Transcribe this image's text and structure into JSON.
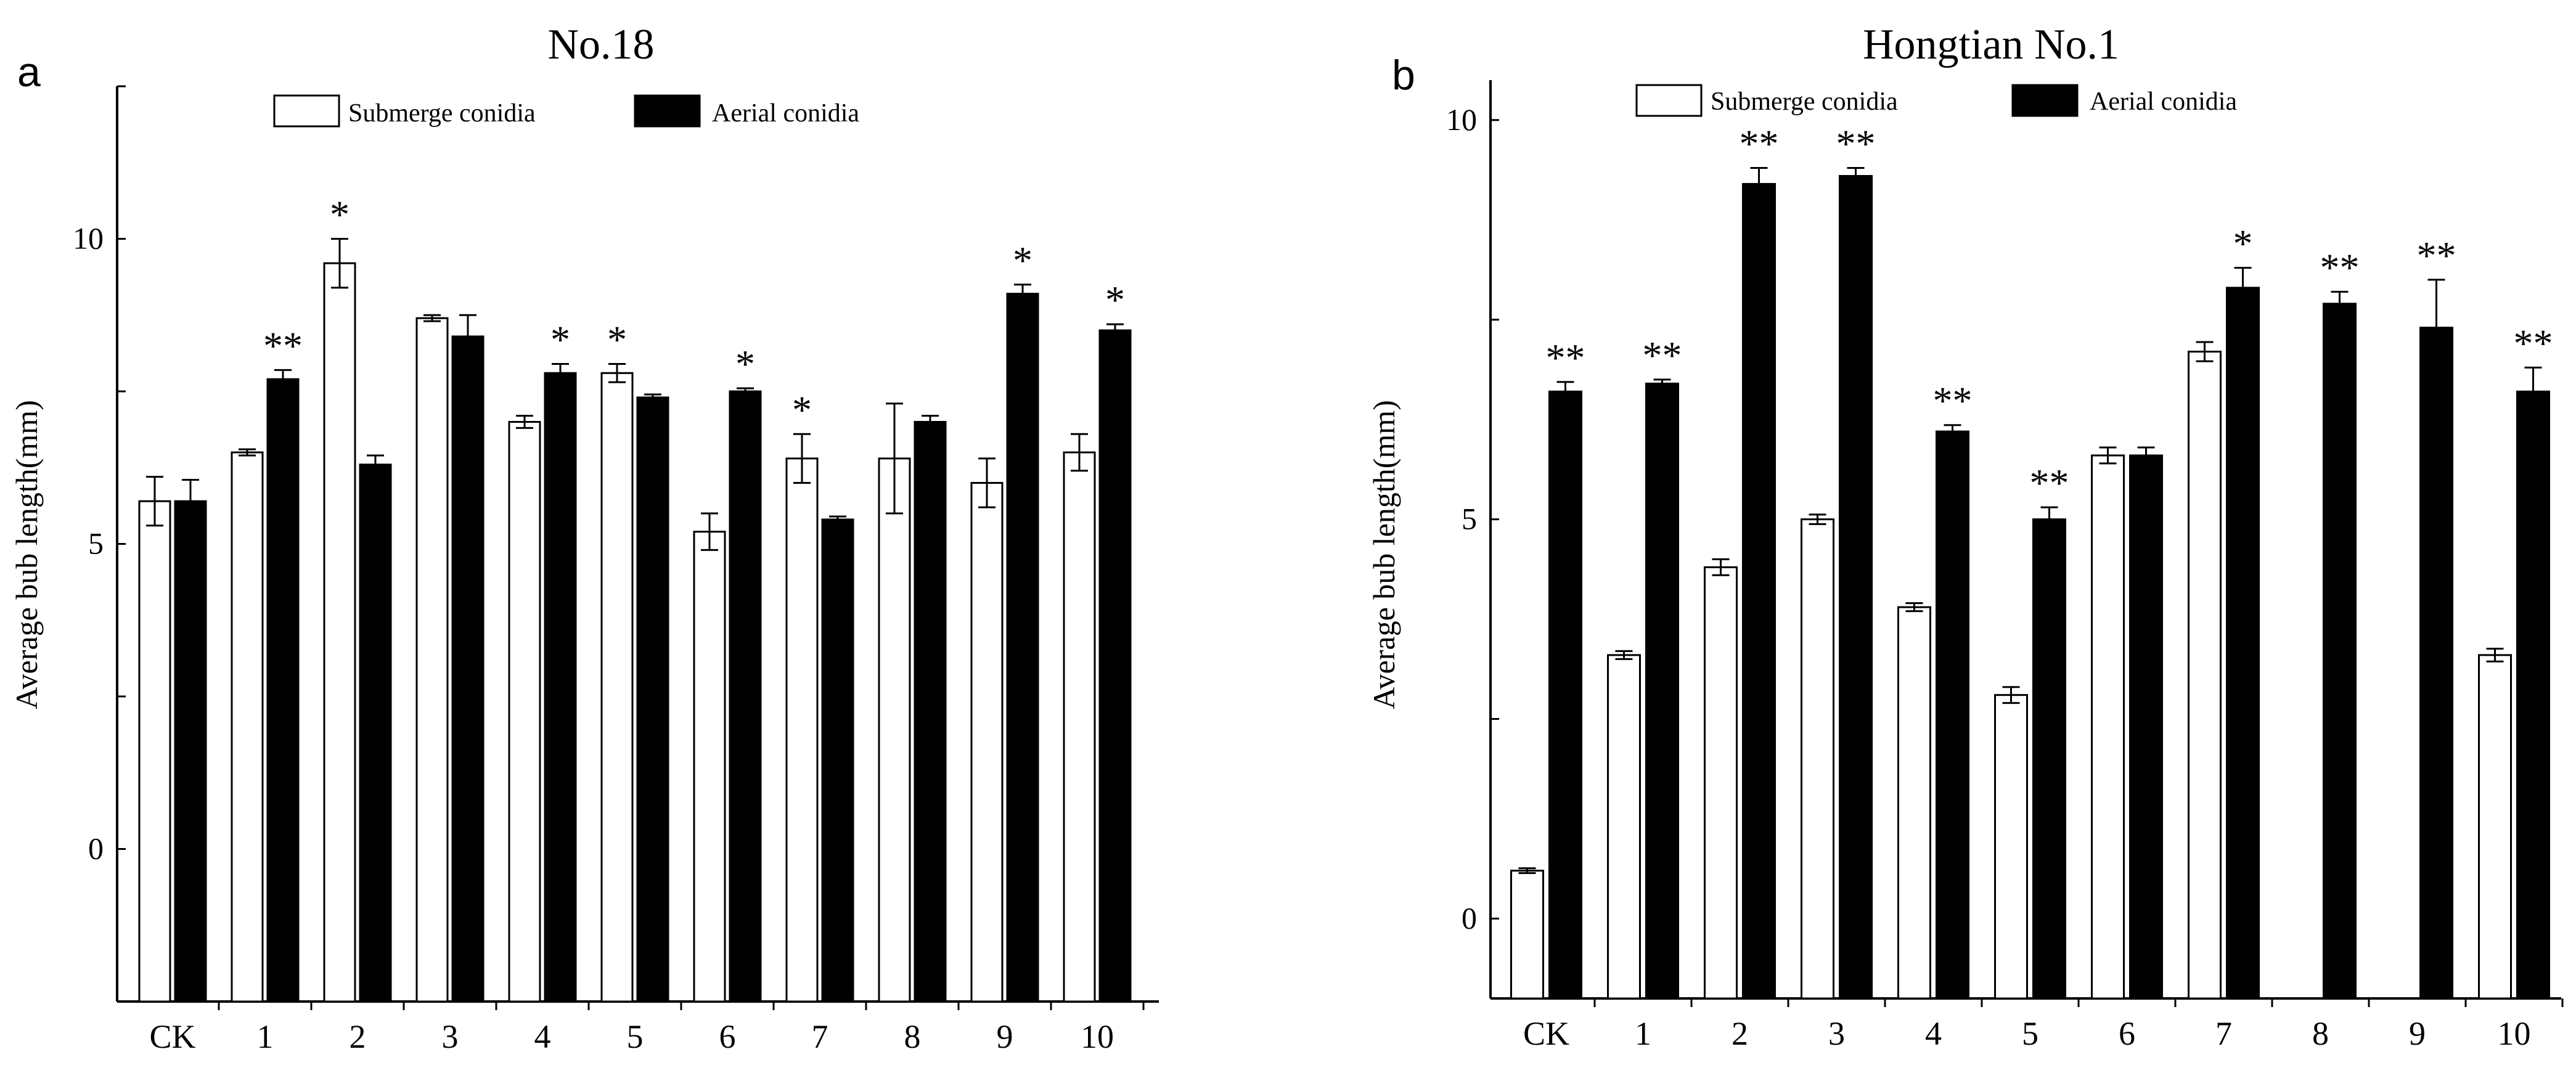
{
  "chart_data": [
    {
      "type": "bar",
      "panel_label": "a",
      "title": "No.18",
      "ylabel": "Average bub length(mm)",
      "xlabel": "",
      "ylim": [
        -2.5,
        12.5
      ],
      "yticks": [
        0,
        5,
        10
      ],
      "ytick_labels": [
        "0",
        "5",
        "10"
      ],
      "categories": [
        "CK",
        "1",
        "2",
        "3",
        "4",
        "5",
        "6",
        "7",
        "8",
        "9",
        "10"
      ],
      "legend": [
        "Submerge conidia",
        "Aerial conidia"
      ],
      "legend_position": "top",
      "series": [
        {
          "name": "Submerge conidia",
          "color": "#ffffff",
          "values": [
            5.7,
            6.5,
            9.6,
            8.7,
            7.0,
            7.8,
            5.2,
            6.4,
            6.4,
            6.0,
            6.5
          ],
          "errors": [
            0.4,
            0.05,
            0.4,
            0.05,
            0.1,
            0.15,
            0.3,
            0.4,
            0.9,
            0.4,
            0.3
          ],
          "markers": [
            "",
            "",
            "*",
            "",
            "",
            "*",
            "",
            "*",
            "",
            "",
            ""
          ]
        },
        {
          "name": "Aerial conidia",
          "color": "#000000",
          "values": [
            5.7,
            7.7,
            6.3,
            8.4,
            7.8,
            7.4,
            7.5,
            5.4,
            7.0,
            9.1,
            8.5
          ],
          "errors": [
            0.35,
            0.15,
            0.15,
            0.35,
            0.15,
            0.05,
            0.05,
            0.05,
            0.1,
            0.15,
            0.1
          ],
          "markers": [
            "",
            "**",
            "",
            "",
            "*",
            "",
            "*",
            "",
            "",
            "*",
            "*"
          ]
        }
      ]
    },
    {
      "type": "bar",
      "panel_label": "b",
      "title": "Hongtian No.1",
      "ylabel": "Average bub length(mm)",
      "xlabel": "",
      "ylim": [
        -1,
        10.5
      ],
      "yticks": [
        0,
        5,
        10
      ],
      "ytick_labels": [
        "0",
        "5",
        "10"
      ],
      "categories": [
        "CK",
        "1",
        "2",
        "3",
        "4",
        "5",
        "6",
        "7",
        "8",
        "9",
        "10"
      ],
      "legend": [
        "Submerge conidia",
        "Aerial conidia"
      ],
      "legend_position": "top",
      "series": [
        {
          "name": "Submerge conidia",
          "color": "#ffffff",
          "values": [
            0.6,
            3.3,
            4.4,
            5.0,
            3.9,
            2.8,
            5.8,
            7.1,
            0,
            0,
            3.3
          ],
          "errors": [
            0.03,
            0.05,
            0.1,
            0.06,
            0.05,
            0.1,
            0.1,
            0.12,
            0,
            0,
            0.08
          ],
          "markers": [
            "",
            "",
            "",
            "",
            "",
            "",
            "",
            "",
            "",
            "",
            ""
          ]
        },
        {
          "name": "Aerial conidia",
          "color": "#000000",
          "values": [
            6.6,
            6.7,
            9.2,
            9.3,
            6.1,
            5.0,
            5.8,
            7.9,
            7.7,
            7.4,
            6.6
          ],
          "errors": [
            0.12,
            0.05,
            0.2,
            0.1,
            0.08,
            0.15,
            0.1,
            0.25,
            0.15,
            0.6,
            0.3
          ],
          "markers": [
            "**",
            "**",
            "**",
            "**",
            "**",
            "**",
            "",
            "*",
            "**",
            "**",
            "**"
          ]
        }
      ]
    }
  ]
}
